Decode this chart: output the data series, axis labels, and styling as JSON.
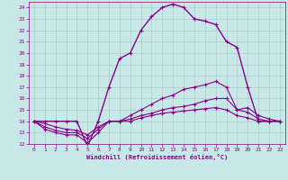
{
  "xlabel": "Windchill (Refroidissement éolien,°C)",
  "background_color": "#c8e8e8",
  "grid_color": "#aacccc",
  "line_color": "#880088",
  "xlim": [
    -0.5,
    23.5
  ],
  "ylim": [
    12,
    24.5
  ],
  "xticks": [
    0,
    1,
    2,
    3,
    4,
    5,
    6,
    7,
    8,
    9,
    10,
    11,
    12,
    13,
    14,
    15,
    16,
    17,
    18,
    19,
    20,
    21,
    22,
    23
  ],
  "yticks": [
    12,
    13,
    14,
    15,
    16,
    17,
    18,
    19,
    20,
    21,
    22,
    23,
    24
  ],
  "series": [
    {
      "x": [
        0,
        1,
        2,
        3,
        4,
        5,
        6,
        7,
        8,
        9,
        10,
        11,
        12,
        13,
        14,
        15,
        16,
        17,
        18,
        19,
        20,
        21,
        22,
        23
      ],
      "y": [
        14,
        14,
        14,
        14,
        14,
        11.8,
        14,
        17,
        19.5,
        20,
        22,
        23.2,
        24.0,
        24.3,
        24.0,
        23.0,
        22.8,
        22.5,
        21.0,
        20.5,
        17.0,
        14.0,
        14.0,
        14.0
      ]
    },
    {
      "x": [
        0,
        1,
        2,
        3,
        4,
        5,
        6,
        7,
        8,
        9,
        10,
        11,
        12,
        13,
        14,
        15,
        16,
        17,
        18,
        19,
        20,
        21,
        22,
        23
      ],
      "y": [
        14,
        13.3,
        13.0,
        12.8,
        12.8,
        12.1,
        13.0,
        14,
        14,
        14.5,
        15.0,
        15.5,
        16.0,
        16.3,
        16.8,
        17.0,
        17.2,
        17.5,
        17.0,
        15.0,
        15.2,
        14.5,
        14.2,
        14.0
      ]
    },
    {
      "x": [
        0,
        1,
        2,
        3,
        4,
        5,
        6,
        7,
        8,
        9,
        10,
        11,
        12,
        13,
        14,
        15,
        16,
        17,
        18,
        19,
        20,
        21,
        22,
        23
      ],
      "y": [
        14,
        13.5,
        13.2,
        13.0,
        13.0,
        12.5,
        13.3,
        14,
        14,
        14.2,
        14.5,
        14.7,
        15.0,
        15.2,
        15.3,
        15.5,
        15.8,
        16.0,
        16.0,
        15.0,
        14.8,
        14.2,
        14.0,
        14.0
      ]
    },
    {
      "x": [
        0,
        1,
        2,
        3,
        4,
        5,
        6,
        7,
        8,
        9,
        10,
        11,
        12,
        13,
        14,
        15,
        16,
        17,
        18,
        19,
        20,
        21,
        22,
        23
      ],
      "y": [
        14,
        13.8,
        13.5,
        13.3,
        13.2,
        12.8,
        13.5,
        14,
        14,
        14.0,
        14.3,
        14.5,
        14.7,
        14.8,
        14.9,
        15.0,
        15.1,
        15.2,
        15.0,
        14.5,
        14.3,
        14.0,
        14.0,
        14.0
      ]
    }
  ]
}
